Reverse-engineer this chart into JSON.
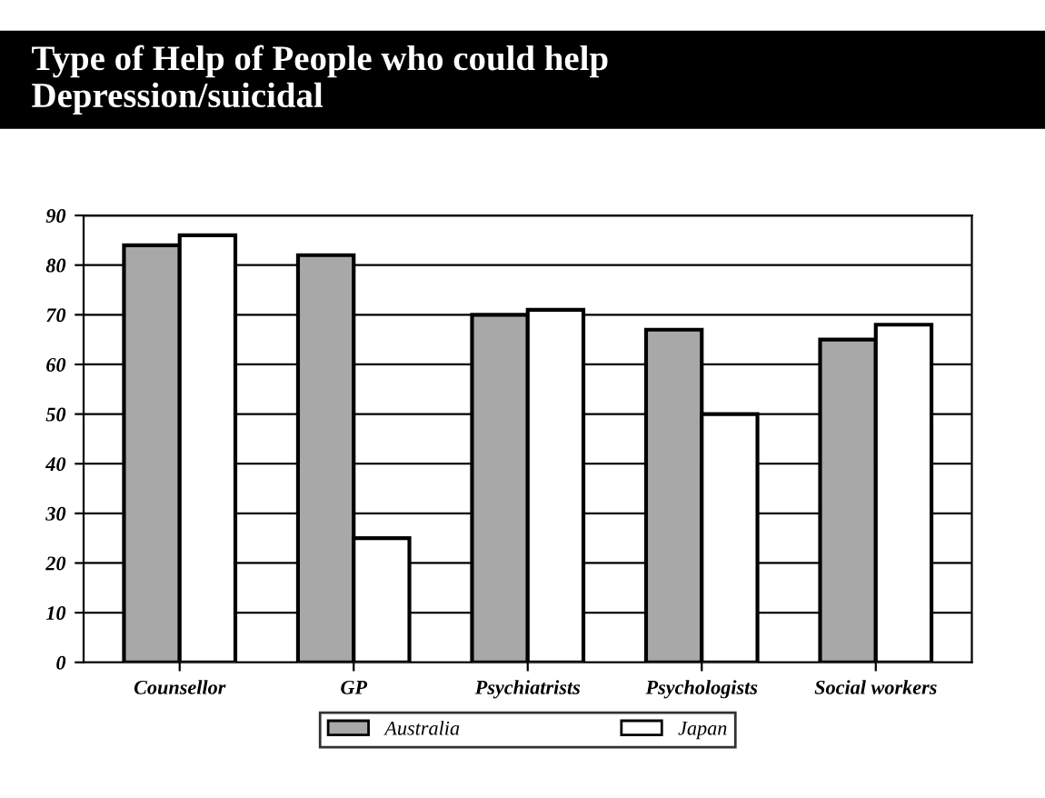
{
  "chart_data": {
    "type": "bar",
    "title": "Type of Help of People who could help\nDepression/suicidal",
    "categories": [
      "Counsellor",
      "GP",
      "Psychiatrists",
      "Psychologists",
      "Social workers"
    ],
    "series": [
      {
        "name": "Australia",
        "color": "#a8a8a8",
        "values": [
          84,
          82,
          70,
          67,
          65
        ]
      },
      {
        "name": "Japan",
        "color": "#ffffff",
        "values": [
          86,
          25,
          71,
          50,
          68
        ]
      }
    ],
    "ylim": [
      0,
      90
    ],
    "yticks": [
      0,
      10,
      20,
      30,
      40,
      50,
      60,
      70,
      80,
      90
    ],
    "grid": "y",
    "legend": "bottom"
  }
}
